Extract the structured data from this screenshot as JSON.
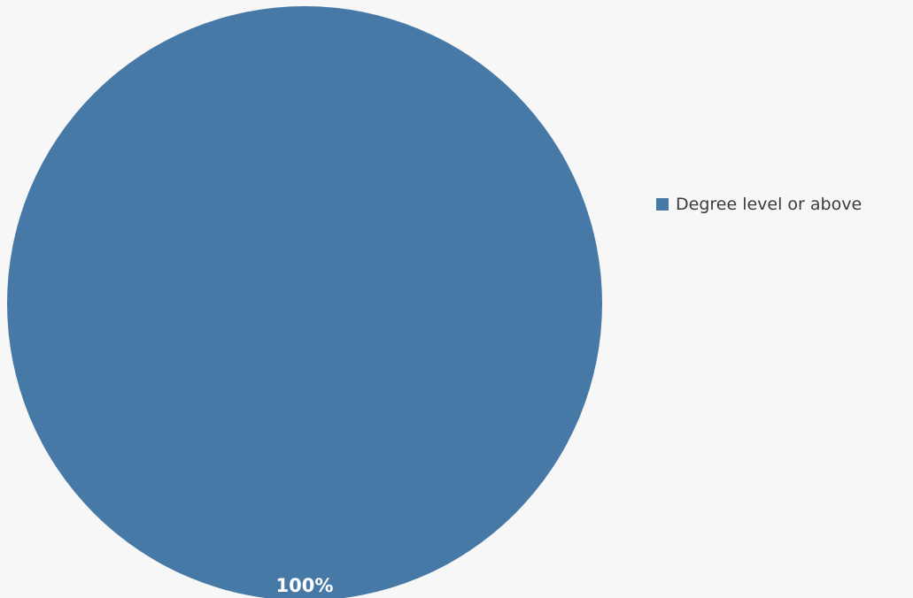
{
  "chart_data": {
    "type": "pie",
    "categories": [
      "Degree level or above"
    ],
    "values": [
      100
    ],
    "data_labels": [
      "100%"
    ],
    "colors": [
      "#4779a7"
    ],
    "title": "",
    "legend_position": "right"
  }
}
